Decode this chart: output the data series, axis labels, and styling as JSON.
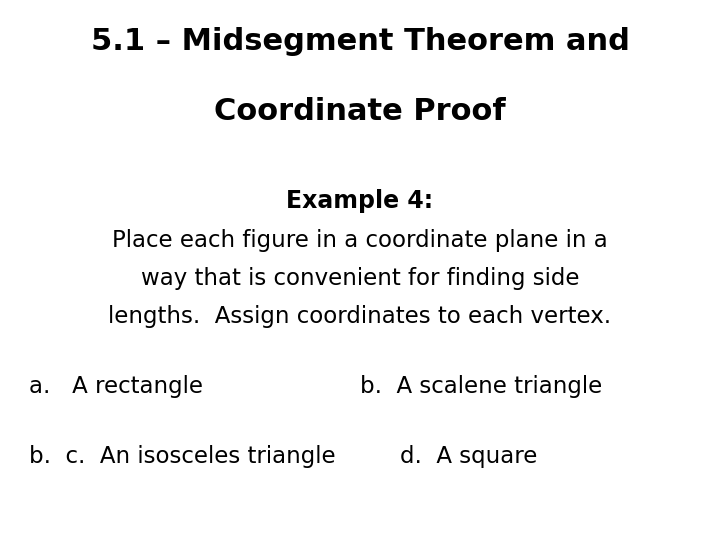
{
  "title_line1": "5.1 – Midsegment Theorem and",
  "title_line2": "Coordinate Proof",
  "example_label": "Example 4:",
  "body_line1": "Place each figure in a coordinate plane in a",
  "body_line2": "way that is convenient for finding side",
  "body_line3": "lengths.  Assign coordinates to each vertex.",
  "item_a": "a.   A rectangle",
  "item_b_right": "b.  A scalene triangle",
  "item_b_left": "b.  c.  An isosceles triangle",
  "item_d": "d.  A square",
  "bg_color": "#ffffff",
  "text_color": "#000000",
  "title_fontsize": 22,
  "example_fontsize": 17,
  "body_fontsize": 16.5,
  "item_fontsize": 16.5
}
